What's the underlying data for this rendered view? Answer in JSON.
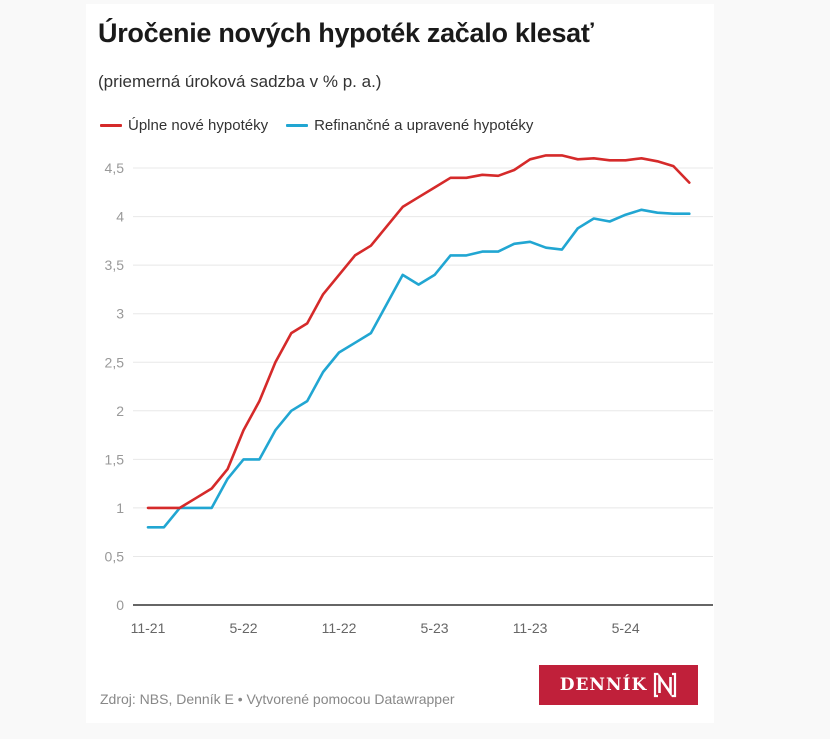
{
  "header": {
    "title": "Úročenie nových hypoték začalo klesať",
    "subtitle": "(priemerná úroková sadzba v % p. a.)"
  },
  "legend": [
    {
      "label": "Úplne nové hypotéky",
      "color": "#d52a2a"
    },
    {
      "label": "Refinančné a upravené hypotéky",
      "color": "#21a6d2"
    }
  ],
  "footer": {
    "source": "Zdroj: NBS, Denník E • Vytvorené pomocou Datawrapper",
    "logo_text": "DENNÍK"
  },
  "colors": {
    "red_series": "#d52a2a",
    "blue_series": "#21a6d2",
    "logo_bg": "#c0203a",
    "gridline": "#e8e8e8",
    "axis_label": "#999999",
    "baseline": "#333333"
  },
  "chart_data": {
    "type": "line",
    "title": "Úročenie nových hypoték začalo klesať",
    "subtitle": "(priemerná úroková sadzba v % p. a.)",
    "xlabel": "",
    "ylabel": "",
    "ylim": [
      0,
      4.5
    ],
    "yticks": [
      0,
      0.5,
      1,
      1.5,
      2,
      2.5,
      3,
      3.5,
      4,
      4.5
    ],
    "ytick_labels": [
      "0",
      "0,5",
      "1",
      "1,5",
      "2",
      "2,5",
      "3",
      "3,5",
      "4",
      "4,5"
    ],
    "xtick_labels": [
      "11-21",
      "5-22",
      "11-22",
      "5-23",
      "11-23",
      "5-24"
    ],
    "xtick_indices": [
      0,
      6,
      12,
      18,
      24,
      30
    ],
    "grid": true,
    "legend_position": "top",
    "x": [
      "11-21",
      "12-21",
      "1-22",
      "2-22",
      "3-22",
      "4-22",
      "5-22",
      "6-22",
      "7-22",
      "8-22",
      "9-22",
      "10-22",
      "11-22",
      "12-22",
      "1-23",
      "2-23",
      "3-23",
      "4-23",
      "5-23",
      "6-23",
      "7-23",
      "8-23",
      "9-23",
      "10-23",
      "11-23",
      "12-23",
      "1-24",
      "2-24",
      "3-24",
      "4-24",
      "5-24",
      "6-24",
      "7-24",
      "8-24",
      "9-24"
    ],
    "series": [
      {
        "name": "Úplne nové hypotéky",
        "color": "#d52a2a",
        "values": [
          1.0,
          1.0,
          1.0,
          1.1,
          1.2,
          1.4,
          1.8,
          2.1,
          2.5,
          2.8,
          2.9,
          3.2,
          3.4,
          3.6,
          3.7,
          3.9,
          4.1,
          4.2,
          4.3,
          4.4,
          4.4,
          4.43,
          4.42,
          4.48,
          4.59,
          4.63,
          4.63,
          4.59,
          4.6,
          4.58,
          4.58,
          4.6,
          4.57,
          4.52,
          4.35
        ]
      },
      {
        "name": "Refinančné a upravené hypotéky",
        "color": "#21a6d2",
        "values": [
          0.8,
          0.8,
          1.0,
          1.0,
          1.0,
          1.3,
          1.5,
          1.5,
          1.8,
          2.0,
          2.1,
          2.4,
          2.6,
          2.7,
          2.8,
          3.1,
          3.4,
          3.3,
          3.4,
          3.6,
          3.6,
          3.64,
          3.64,
          3.72,
          3.74,
          3.68,
          3.66,
          3.88,
          3.98,
          3.95,
          4.02,
          4.07,
          4.04,
          4.03,
          4.03
        ]
      }
    ]
  }
}
